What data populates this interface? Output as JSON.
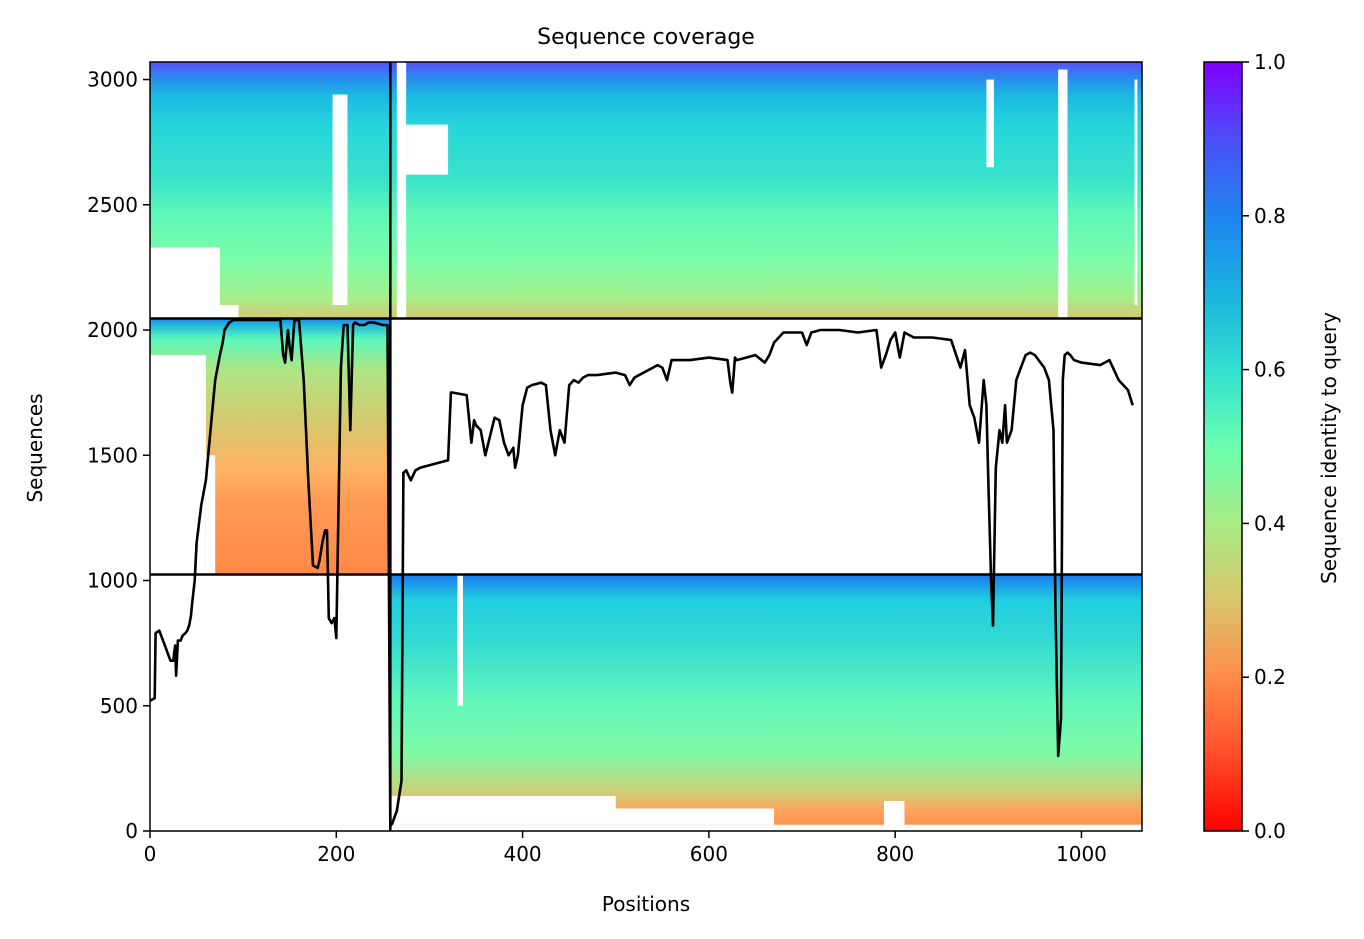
{
  "chart_data": {
    "type": "heatmap",
    "title": "Sequence coverage",
    "xlabel": "Positions",
    "ylabel": "Sequences",
    "xlim": [
      0,
      1065
    ],
    "ylim": [
      0,
      3070
    ],
    "x_ticks": [
      0,
      200,
      400,
      600,
      800,
      1000
    ],
    "y_ticks": [
      0,
      500,
      1000,
      1500,
      2000,
      2500,
      3000
    ],
    "colorbar": {
      "label": "Sequence identity to query",
      "range": [
        0,
        1
      ],
      "ticks": [
        0.0,
        0.2,
        0.4,
        0.6,
        0.8,
        1.0
      ],
      "tick_labels": [
        "0.0",
        "0.2",
        "0.4",
        "0.6",
        "0.8",
        "1.0"
      ],
      "colormap": "rainbow_r"
    },
    "divider_lines": {
      "horizontal": [
        1024,
        2046
      ],
      "vertical": [
        258
      ]
    },
    "blocks": [
      {
        "name": "block-bottom-right",
        "x": [
          258,
          1065
        ],
        "y": [
          0,
          1024
        ],
        "identity_bottom": 0.18,
        "identity_top": 0.82
      },
      {
        "name": "block-middle-left",
        "x": [
          0,
          258
        ],
        "y": [
          1024,
          2046
        ],
        "identity_bottom": 0.22,
        "identity_top": 0.72
      },
      {
        "name": "block-top-full",
        "x": [
          0,
          1065
        ],
        "y": [
          2046,
          3070
        ],
        "identity_bottom": 0.32,
        "identity_top": 0.88
      }
    ],
    "coverage_line": {
      "x": [
        0,
        5,
        6,
        10,
        15,
        20,
        22,
        25,
        27,
        28,
        30,
        33,
        35,
        38,
        40,
        42,
        44,
        45,
        48,
        50,
        55,
        60,
        65,
        70,
        75,
        78,
        80,
        85,
        90,
        95,
        100,
        120,
        140,
        143,
        145,
        148,
        150,
        152,
        155,
        160,
        165,
        170,
        175,
        180,
        182,
        185,
        188,
        190,
        192,
        195,
        198,
        200,
        205,
        208,
        212,
        215,
        218,
        220,
        225,
        230,
        235,
        240,
        250,
        255,
        258,
        260,
        265,
        270,
        272,
        275,
        280,
        285,
        290,
        300,
        320,
        323,
        325,
        340,
        345,
        348,
        350,
        355,
        360,
        370,
        375,
        380,
        385,
        390,
        392,
        395,
        400,
        405,
        410,
        420,
        425,
        430,
        435,
        440,
        445,
        450,
        455,
        460,
        465,
        470,
        480,
        500,
        510,
        515,
        520,
        540,
        545,
        550,
        555,
        560,
        580,
        600,
        620,
        623,
        625,
        628,
        630,
        650,
        660,
        665,
        670,
        680,
        700,
        705,
        710,
        720,
        740,
        760,
        780,
        785,
        790,
        795,
        800,
        805,
        810,
        820,
        840,
        860,
        870,
        875,
        880,
        885,
        890,
        895,
        898,
        900,
        903,
        905,
        908,
        912,
        915,
        918,
        920,
        925,
        930,
        935,
        940,
        945,
        950,
        960,
        965,
        970,
        972,
        975,
        978,
        980,
        982,
        985,
        988,
        992,
        1000,
        1020,
        1030,
        1040,
        1050,
        1055,
        1058,
        1062,
        1065
      ],
      "y": [
        520,
        530,
        790,
        800,
        750,
        700,
        680,
        680,
        740,
        620,
        760,
        760,
        780,
        790,
        800,
        820,
        860,
        900,
        1000,
        1150,
        1300,
        1400,
        1600,
        1800,
        1900,
        1950,
        2000,
        2030,
        2040,
        2040,
        2040,
        2040,
        2040,
        1900,
        1870,
        2000,
        1930,
        1880,
        2040,
        2040,
        1800,
        1400,
        1060,
        1050,
        1080,
        1150,
        1200,
        1200,
        850,
        830,
        850,
        770,
        1850,
        2020,
        2020,
        1600,
        2020,
        2030,
        2020,
        2020,
        2030,
        2030,
        2020,
        2020,
        20,
        30,
        80,
        200,
        1430,
        1440,
        1400,
        1440,
        1450,
        1460,
        1480,
        1750,
        1750,
        1740,
        1550,
        1640,
        1620,
        1600,
        1500,
        1650,
        1640,
        1550,
        1500,
        1530,
        1450,
        1500,
        1700,
        1770,
        1780,
        1790,
        1780,
        1600,
        1500,
        1600,
        1550,
        1780,
        1800,
        1790,
        1810,
        1820,
        1820,
        1830,
        1820,
        1780,
        1810,
        1850,
        1860,
        1850,
        1800,
        1880,
        1880,
        1890,
        1880,
        1790,
        1750,
        1890,
        1880,
        1900,
        1870,
        1900,
        1950,
        1990,
        1990,
        1940,
        1990,
        2000,
        2000,
        1990,
        2000,
        1850,
        1900,
        1960,
        1990,
        1890,
        1990,
        1970,
        1970,
        1960,
        1850,
        1920,
        1700,
        1650,
        1550,
        1800,
        1700,
        1400,
        1000,
        820,
        1450,
        1600,
        1550,
        1700,
        1550,
        1600,
        1800,
        1850,
        1900,
        1910,
        1900,
        1850,
        1800,
        1600,
        900,
        300,
        450,
        1800,
        1900,
        1910,
        1900,
        1880,
        1870,
        1860,
        1880,
        1800,
        1760,
        1700
      ]
    }
  }
}
